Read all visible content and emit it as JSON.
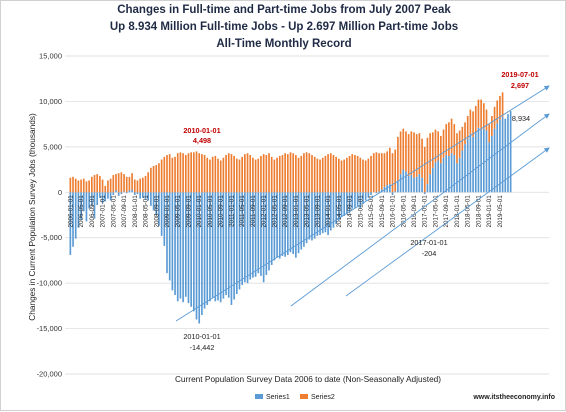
{
  "chart_data": {
    "type": "bar",
    "stacked": true,
    "title_lines": [
      "Changes in Full-time and Part-time Jobs from July 2007 Peak",
      "Up 8.934 Million Full-time Jobs - Up 2.697 Million Part-time Jobs",
      "All-Time Monthly Record"
    ],
    "ylabel": "Changes in Current Population Survey Jobs (thousands)",
    "xlabel": "Current Population Survey Data 2006 to date (Non-Seasonally Adjusted)",
    "ylim": [
      -20000,
      15000
    ],
    "yticks": [
      15000,
      10000,
      5000,
      0,
      -5000,
      -10000,
      -15000,
      -20000
    ],
    "ytick_labels": [
      "15,000",
      "10,000",
      "5,000",
      "0",
      "-5,000",
      "-10,000",
      "-15,000",
      "-20,000"
    ],
    "xtick_labels": [
      "2006-01-01",
      "2006-05-01",
      "2006-09-01",
      "2007-01-01",
      "2007-05-01",
      "2007-09-01",
      "2008-01-01",
      "2008-05-01",
      "2008-09-01",
      "2009-01-01",
      "2009-05-01",
      "2009-09-01",
      "2010-01-01",
      "2010-05-01",
      "2010-09-01",
      "2011-01-01",
      "2011-05-01",
      "2011-09-01",
      "2012-01-01",
      "2012-05-01",
      "2012-09-01",
      "2013-01-01",
      "2013-05-01",
      "2013-09-01",
      "2014-01-01",
      "2014-05-01",
      "2014-09-01",
      "2015-01-01",
      "2015-05-01",
      "2015-09-01",
      "2016-01-01",
      "2016-05-01",
      "2016-09-01",
      "2017-01-01",
      "2017-05-01",
      "2017-09-01",
      "2018-01-01",
      "2018-05-01",
      "2018-09-01",
      "2019-01-01",
      "2019-05-01"
    ],
    "series": [
      {
        "name": "Series1",
        "color": "#5b9bd5",
        "values": [
          -6900,
          -6000,
          -5100,
          -3900,
          -3000,
          -2100,
          -3200,
          -1800,
          -1500,
          -2900,
          -1400,
          -600,
          -1200,
          -1000,
          -700,
          -900,
          -300,
          200,
          -400,
          -200,
          100,
          -100,
          200,
          300,
          -300,
          -200,
          -700,
          -600,
          -800,
          -900,
          -1500,
          -2000,
          -2500,
          -3700,
          -4800,
          -5900,
          -8900,
          -9700,
          -10800,
          -11300,
          -12000,
          -11700,
          -12100,
          -11500,
          -12200,
          -12600,
          -13100,
          -14000,
          -14442,
          -13500,
          -12800,
          -12400,
          -12000,
          -11600,
          -12000,
          -11900,
          -12100,
          -11700,
          -11300,
          -11600,
          -12400,
          -11800,
          -11200,
          -10700,
          -10200,
          -9900,
          -10000,
          -9600,
          -9400,
          -9300,
          -8900,
          -9200,
          -9900,
          -9100,
          -8600,
          -8000,
          -7500,
          -7200,
          -7300,
          -7000,
          -7100,
          -6900,
          -6600,
          -6800,
          -7200,
          -6700,
          -6300,
          -6000,
          -5600,
          -5200,
          -5300,
          -5100,
          -4800,
          -4700,
          -4500,
          -4400,
          -4700,
          -4200,
          -3900,
          -3500,
          -3100,
          -2700,
          -2600,
          -2400,
          -2100,
          -1800,
          -1700,
          -1500,
          -1800,
          -1300,
          -900,
          -600,
          -300,
          0,
          -100,
          100,
          300,
          600,
          800,
          900,
          -300,
          100,
          1300,
          2000,
          2500,
          2300,
          1800,
          1900,
          1600,
          1700,
          2000,
          1600,
          -204,
          900,
          2000,
          2700,
          3300,
          3500,
          3200,
          3800,
          4100,
          4000,
          4300,
          4100,
          3200,
          3800,
          4600,
          5300,
          5900,
          6400,
          6100,
          6600,
          7100,
          6900,
          7000,
          6800,
          5500,
          6200,
          7000,
          7600,
          8000,
          8300,
          8100,
          8600,
          8934
        ],
        "min_label": {
          "date": "2010-01-01",
          "value": "-14,442"
        },
        "low_label": {
          "date": "2017-01-01",
          "value": "-204"
        },
        "last_label": "8,934"
      },
      {
        "name": "Series2",
        "color": "#ed7d31",
        "values": [
          1600,
          1700,
          1500,
          1300,
          1400,
          1500,
          1200,
          1300,
          1700,
          1900,
          2000,
          1800,
          1400,
          700,
          1300,
          1500,
          1900,
          1800,
          2100,
          2200,
          1900,
          1700,
          1500,
          1800,
          1400,
          1300,
          1500,
          1600,
          1800,
          2200,
          2700,
          2900,
          3000,
          3200,
          3600,
          3900,
          4100,
          4200,
          3800,
          3900,
          4300,
          4400,
          4300,
          4100,
          4300,
          4400,
          4400,
          4498,
          4300,
          4200,
          4100,
          3800,
          3600,
          3900,
          4000,
          3700,
          3500,
          3800,
          4100,
          4300,
          4200,
          4000,
          3700,
          3600,
          3900,
          4200,
          4300,
          4100,
          3800,
          3600,
          3700,
          4000,
          4200,
          4100,
          4300,
          3900,
          3600,
          3800,
          4000,
          4100,
          4300,
          4200,
          4400,
          4300,
          4100,
          3800,
          4000,
          4300,
          4400,
          4300,
          4100,
          3900,
          3700,
          3600,
          3800,
          4000,
          4200,
          4300,
          4100,
          3900,
          3700,
          3500,
          3600,
          3800,
          4000,
          4200,
          4100,
          4000,
          3800,
          3600,
          3500,
          3700,
          4000,
          4300,
          4400,
          4200,
          4000,
          3700,
          3700,
          4000,
          4300,
          4600,
          4800,
          4700,
          4500,
          4400,
          4600,
          4800,
          5000,
          4700,
          4500,
          4300,
          5000,
          5100,
          4500,
          3900,
          3600,
          3200,
          3000,
          3100,
          3400,
          3700,
          3800,
          3400,
          3300,
          3000,
          2600,
          2400,
          2500,
          2700,
          2800,
          2900,
          3100,
          3300,
          2800,
          2300,
          2000,
          2200,
          2400,
          2500,
          2600,
          2697
        ],
        "max_label": {
          "date": "2010-01-01",
          "value": "4,498"
        },
        "last_label": {
          "date": "2019-07-01",
          "value": "2,697"
        }
      }
    ],
    "legend": {
      "placement": "bottom",
      "entries": [
        "Series1",
        "Series2"
      ]
    },
    "grid": true,
    "trend_arrows": 3
  },
  "source_text": "www.itstheeconomy.info"
}
